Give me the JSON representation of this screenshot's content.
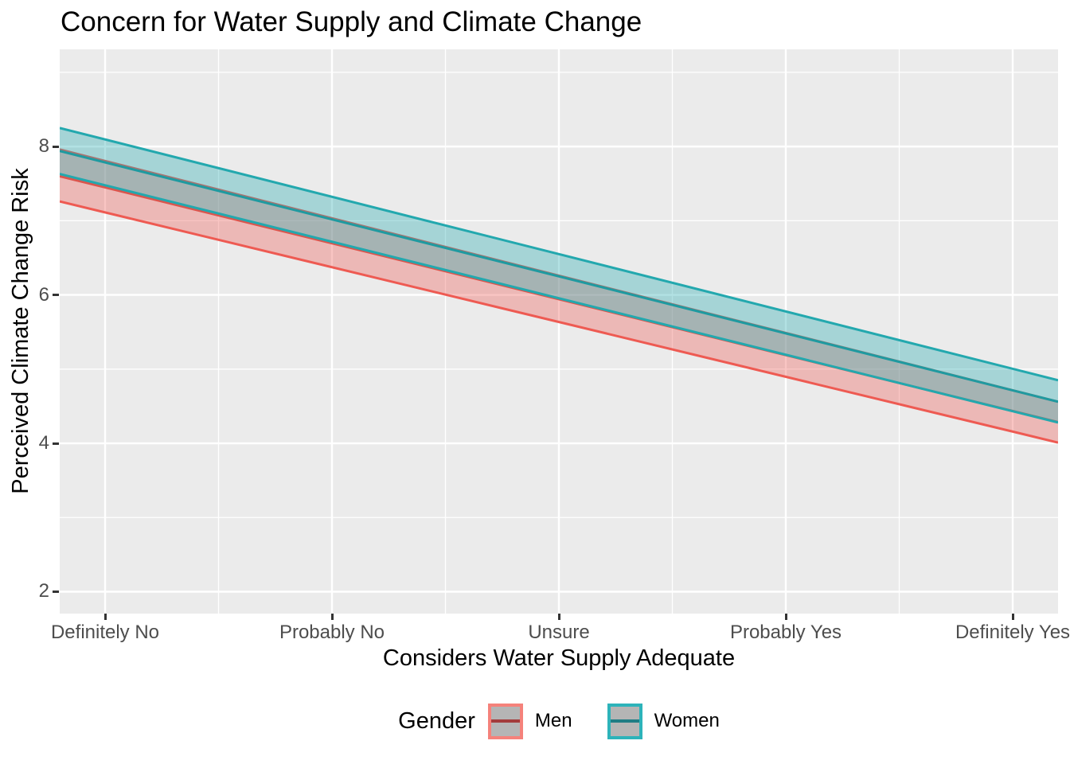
{
  "title": "Concern for Water Supply and Climate Change",
  "panel": {
    "bg_color": "#EBEBEB",
    "grid_color": "#FFFFFF",
    "tick_mark_color": "#333333",
    "tick_label_color": "#4D4D4D"
  },
  "x_axis": {
    "title": "Considers Water Supply Adequate",
    "categories": [
      "Definitely No",
      "Probably No",
      "Unsure",
      "Probably Yes",
      "Definitely Yes"
    ],
    "category_positions": [
      1,
      2,
      3,
      4,
      5
    ],
    "minor_gridlines": [
      1.5,
      2.5,
      3.5,
      4.5
    ],
    "range": [
      0.8,
      5.2
    ]
  },
  "y_axis": {
    "title": "Perceived Climate Change Risk",
    "tick_labels": [
      "2",
      "4",
      "6",
      "8"
    ],
    "tick_values": [
      2,
      4,
      6,
      8
    ],
    "minor_gridlines": [
      3,
      5,
      7,
      9
    ],
    "range": [
      1.705,
      9.31
    ]
  },
  "legend": {
    "title": "Gender",
    "entries": [
      {
        "label": "Men",
        "border_color": "#F5827B",
        "line_color": "#A33C3C",
        "key_fill": "#B5B5B5"
      },
      {
        "label": "Women",
        "border_color": "#2DB3BA",
        "line_color": "#207D84",
        "key_fill": "#B5B5B5"
      }
    ]
  },
  "chart_data": {
    "type": "area",
    "subtype": "regression-lines-with-confidence-ribbons",
    "title": "Concern for Water Supply and Climate Change",
    "xlabel": "Considers Water Supply Adequate",
    "ylabel": "Perceived Climate Change Risk",
    "x_categories": [
      "Definitely No",
      "Probably No",
      "Unsure",
      "Probably Yes",
      "Definitely Yes"
    ],
    "x_range": [
      0.8,
      5.2
    ],
    "y_range": [
      1.705,
      9.31
    ],
    "grid": true,
    "legend_position": "bottom",
    "series": [
      {
        "name": "Men",
        "x_ends": [
          0.8,
          5.2
        ],
        "center_ends": [
          7.6,
          4.285
        ],
        "upper_ends": [
          7.96,
          4.56
        ],
        "lower_ends": [
          7.26,
          4.01
        ],
        "values_at_categories": {
          "center": [
            7.45,
            6.7,
            5.94,
            5.19,
            4.43
          ],
          "upper": [
            7.81,
            7.03,
            6.26,
            5.49,
            4.71
          ],
          "lower": [
            7.1,
            6.37,
            5.63,
            4.9,
            4.16
          ]
        },
        "edge_color": "#EE5A52",
        "line_color": "#DC554D",
        "fill_color": "rgba(238,90,82,0.35)"
      },
      {
        "name": "Women",
        "x_ends": [
          0.8,
          5.2
        ],
        "center_ends": [
          7.94,
          4.56
        ],
        "upper_ends": [
          8.25,
          4.85
        ],
        "lower_ends": [
          7.63,
          4.28
        ],
        "values_at_categories": {
          "center": [
            7.79,
            7.02,
            6.25,
            5.48,
            4.71
          ],
          "upper": [
            8.1,
            7.32,
            6.55,
            5.78,
            5.0
          ],
          "lower": [
            7.48,
            6.72,
            5.96,
            5.2,
            4.43
          ]
        },
        "edge_color": "#23A8AE",
        "line_color": "#1F9AA0",
        "fill_color": "rgba(35,168,174,0.35)"
      }
    ]
  }
}
